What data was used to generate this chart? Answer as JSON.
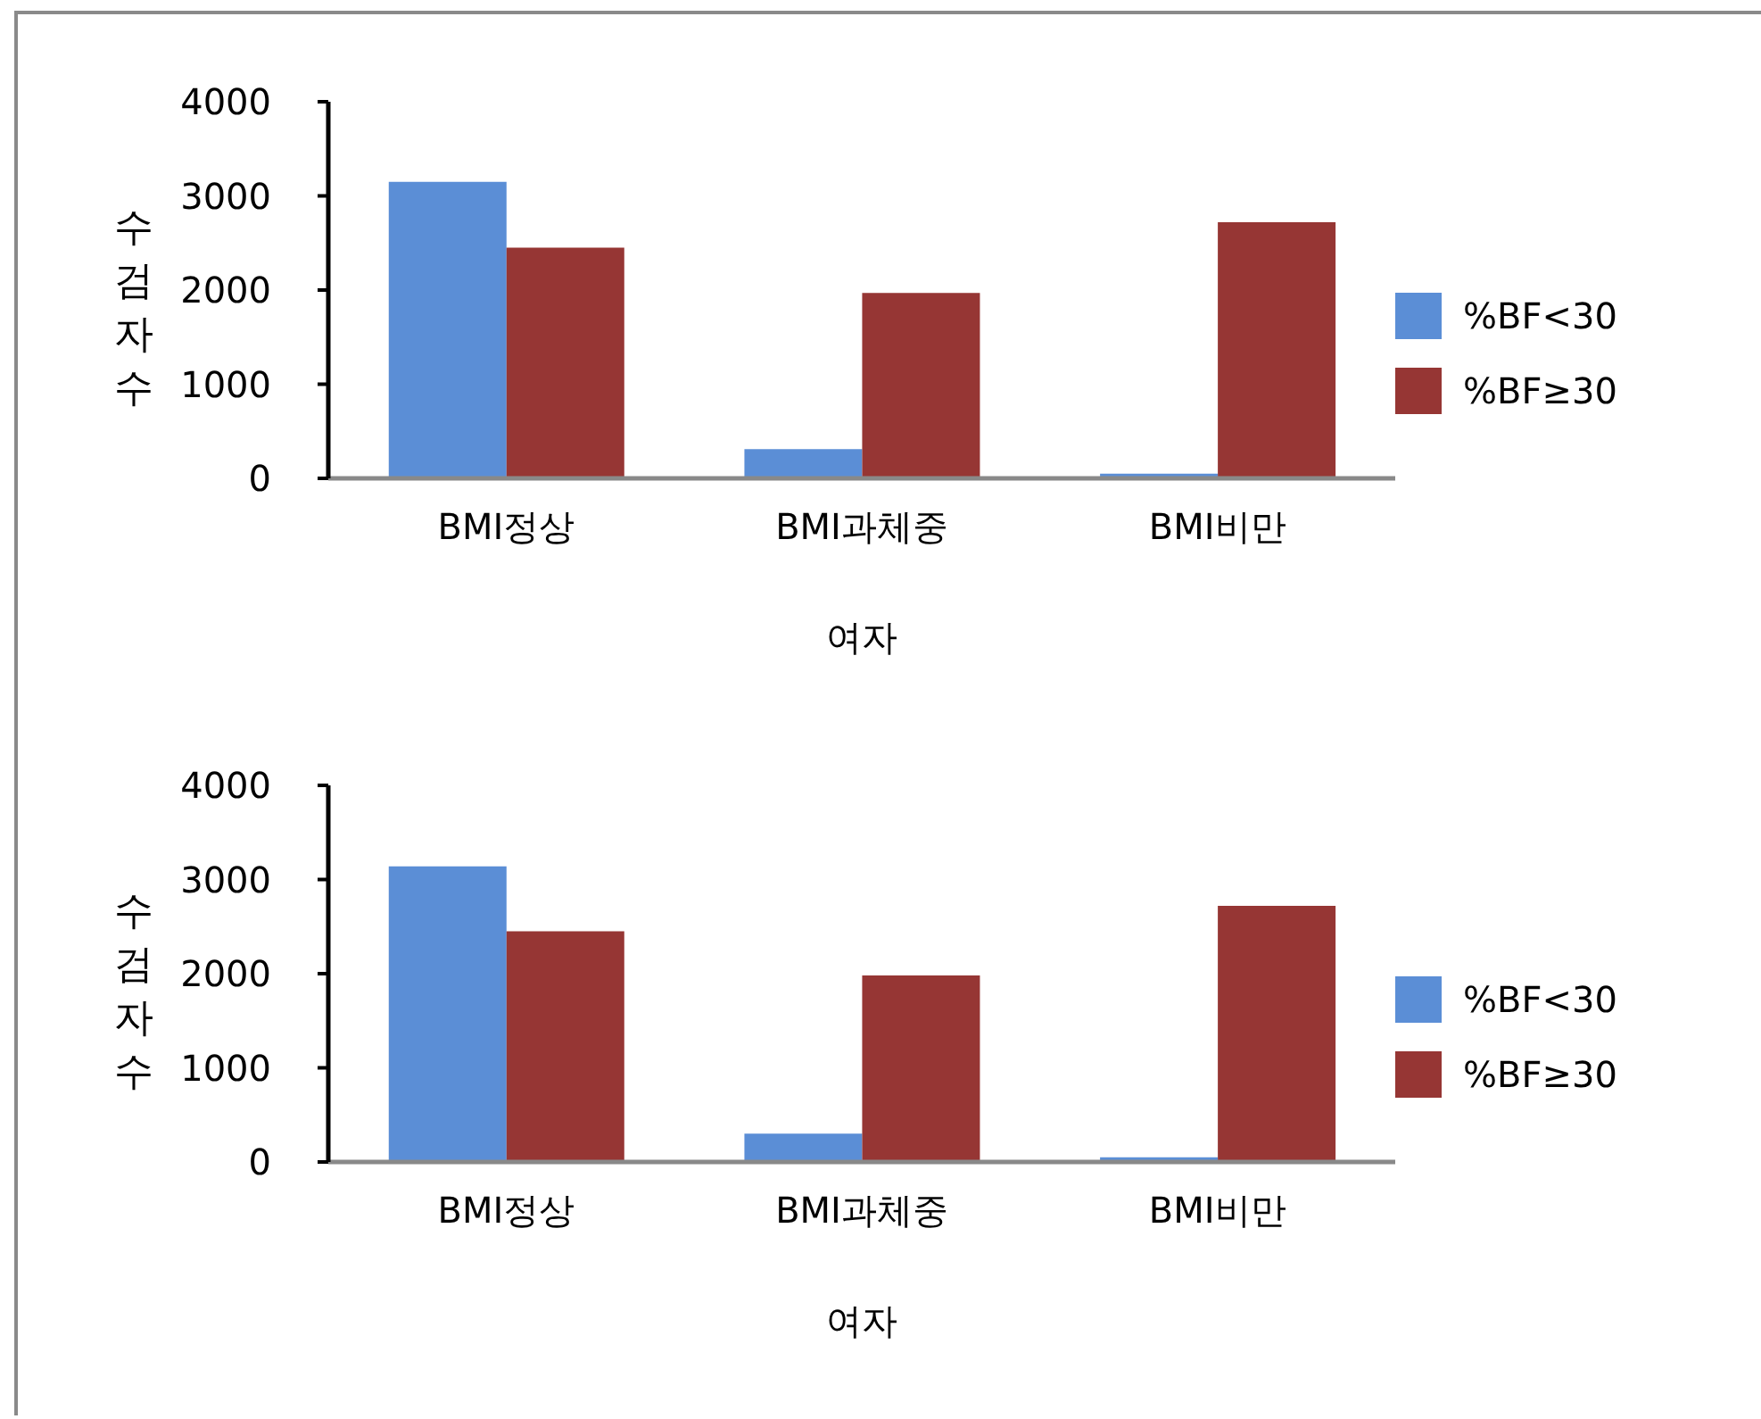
{
  "chart_data": [
    {
      "type": "bar",
      "categories": [
        "BMI정상",
        "BMI과체중",
        "BMI비만"
      ],
      "series": [
        {
          "name": "%BF<30",
          "color": "#5b8ed6",
          "values": [
            3150,
            310,
            50
          ]
        },
        {
          "name": "%BF≥30",
          "color": "#963634",
          "values": [
            2450,
            1970,
            2720
          ]
        }
      ],
      "xlabel": "여자",
      "ylabel": "수검자수",
      "ylim": [
        0,
        4000
      ],
      "yticks": [
        0,
        1000,
        2000,
        3000,
        4000
      ],
      "legend": "right"
    },
    {
      "type": "bar",
      "categories": [
        "BMI정상",
        "BMI과체중",
        "BMI비만"
      ],
      "series": [
        {
          "name": "%BF<30",
          "color": "#5b8ed6",
          "values": [
            3140,
            300,
            50
          ]
        },
        {
          "name": "%BF≥30",
          "color": "#963634",
          "values": [
            2450,
            1980,
            2720
          ]
        }
      ],
      "xlabel": "여자",
      "ylabel": "수검자수",
      "ylim": [
        0,
        4000
      ],
      "yticks": [
        0,
        1000,
        2000,
        3000,
        4000
      ],
      "legend": "right"
    }
  ]
}
